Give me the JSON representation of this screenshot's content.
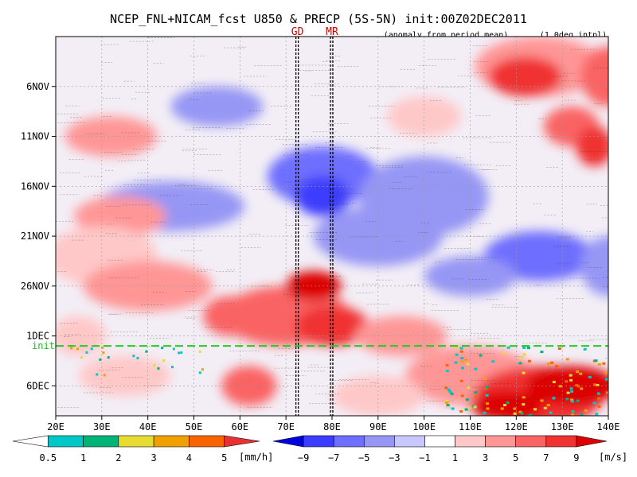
{
  "chart_data": {
    "type": "heatmap",
    "title": "NCEP_FNL+NICAM_fcst U850 & PRECP (5S-5N) init:00Z02DEC2011",
    "subtitle_left": "(anomaly from period mean)",
    "subtitle_right": "(1.0deg intpl)",
    "x_ticks": [
      "20E",
      "30E",
      "40E",
      "50E",
      "60E",
      "70E",
      "80E",
      "90E",
      "100E",
      "110E",
      "120E",
      "130E",
      "140E"
    ],
    "x_values": [
      20,
      30,
      40,
      50,
      60,
      70,
      80,
      90,
      100,
      110,
      120,
      130,
      140
    ],
    "xlim": [
      20,
      140
    ],
    "y_ticks": [
      "6NOV",
      "11NOV",
      "16NOV",
      "21NOV",
      "26NOV",
      "1DEC",
      "6DEC"
    ],
    "y_day_index": [
      5,
      10,
      15,
      20,
      25,
      30,
      35
    ],
    "ylim_day_index": [
      0,
      38
    ],
    "markers": [
      {
        "label": "GD",
        "lon": 72.5
      },
      {
        "label": "MR",
        "lon": 80.0
      }
    ],
    "init_label": "init",
    "init_day_index": 31,
    "grid": true,
    "precip_colorbar": {
      "levels": [
        "0.5",
        "1",
        "2",
        "3",
        "4",
        "5"
      ],
      "unit": "[mm/h]",
      "colors": [
        "#ffffff",
        "#00c8c8",
        "#00b478",
        "#e6dc32",
        "#f0a000",
        "#fa6400",
        "#e63232"
      ]
    },
    "wind_colorbar": {
      "levels": [
        "−9",
        "−7",
        "−5",
        "−3",
        "−1",
        "1",
        "3",
        "5",
        "7",
        "9"
      ],
      "unit": "[m/s]",
      "colors": [
        "#0000e0",
        "#3c3cff",
        "#6e6eff",
        "#9696f5",
        "#c8c8ff",
        "#ffffff",
        "#ffc8c8",
        "#ff9696",
        "#fa6464",
        "#f03232",
        "#dc0000"
      ]
    }
  }
}
